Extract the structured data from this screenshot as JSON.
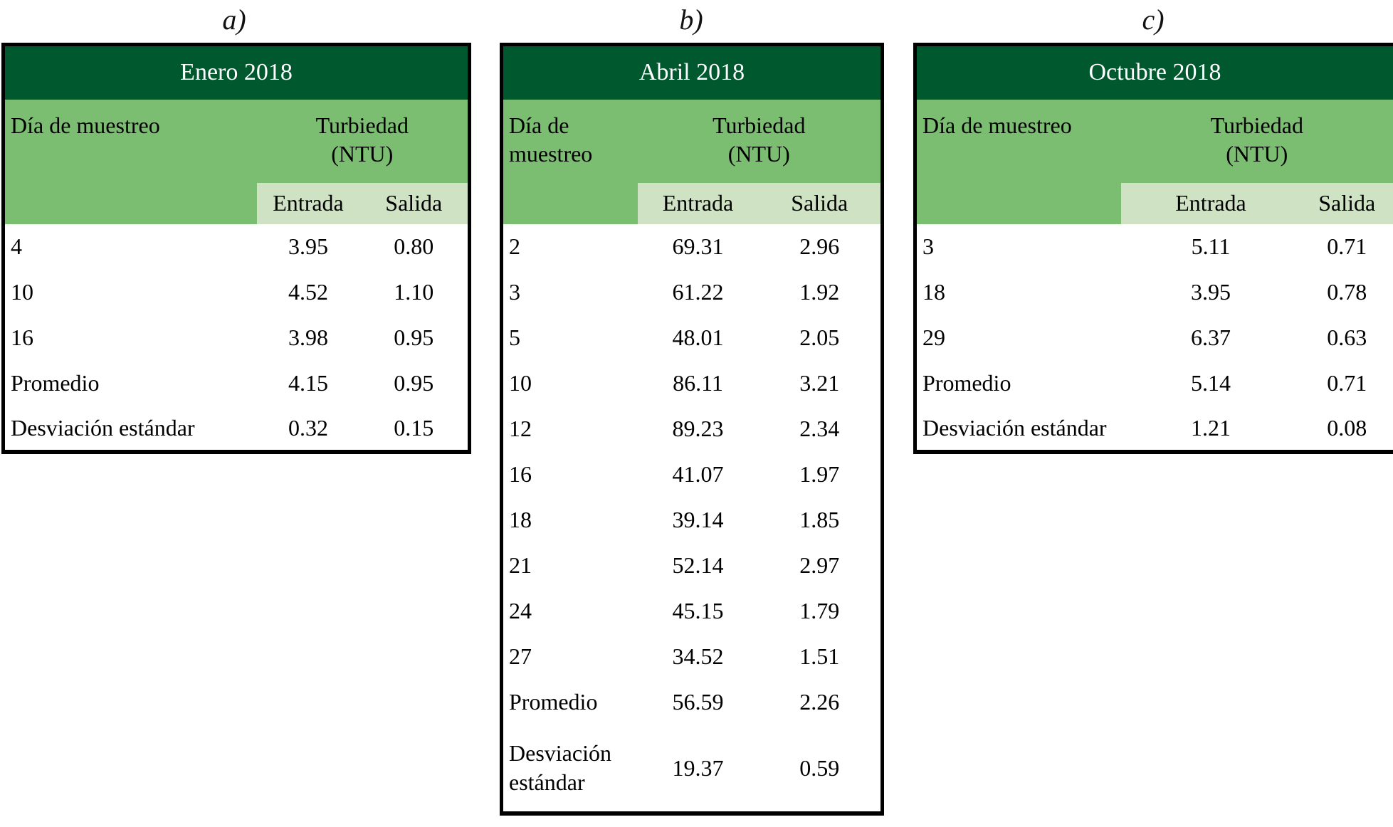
{
  "panels": [
    {
      "label": "a)",
      "title": "Enero 2018",
      "headers": {
        "day": "Día de muestreo",
        "group": "Turbiedad",
        "unit": "(NTU)",
        "inflow": "Entrada",
        "outflow": "Salida"
      },
      "rows": [
        [
          "4",
          "3.95",
          "0.80"
        ],
        [
          "10",
          "4.52",
          "1.10"
        ],
        [
          "16",
          "3.98",
          "0.95"
        ],
        [
          "Promedio",
          "4.15",
          "0.95"
        ],
        [
          "Desviación estándar",
          "0.32",
          "0.15"
        ]
      ]
    },
    {
      "label": "b)",
      "title": "Abril 2018",
      "headers": {
        "day": "Día de muestreo",
        "group": "Turbiedad",
        "unit": "(NTU)",
        "inflow": "Entrada",
        "outflow": "Salida"
      },
      "rows": [
        [
          "2",
          "69.31",
          "2.96"
        ],
        [
          "3",
          "61.22",
          "1.92"
        ],
        [
          "5",
          "48.01",
          "2.05"
        ],
        [
          "10",
          "86.11",
          "3.21"
        ],
        [
          "12",
          "89.23",
          "2.34"
        ],
        [
          "16",
          "41.07",
          "1.97"
        ],
        [
          "18",
          "39.14",
          "1.85"
        ],
        [
          "21",
          "52.14",
          "2.97"
        ],
        [
          "24",
          "45.15",
          "1.79"
        ],
        [
          "27",
          "34.52",
          "1.51"
        ],
        [
          "Promedio",
          "56.59",
          "2.26"
        ],
        [
          "Desviación estándar",
          "19.37",
          "0.59"
        ]
      ]
    },
    {
      "label": "c)",
      "title": "Octubre 2018",
      "headers": {
        "day": "Día de muestreo",
        "group": "Turbiedad",
        "unit": "(NTU)",
        "inflow": "Entrada",
        "outflow": "Salida"
      },
      "rows": [
        [
          "3",
          "5.11",
          "0.71"
        ],
        [
          "18",
          "3.95",
          "0.78"
        ],
        [
          "29",
          "6.37",
          "0.63"
        ],
        [
          "Promedio",
          "5.14",
          "0.71"
        ],
        [
          "Desviación estándar",
          "1.21",
          "0.08"
        ]
      ]
    }
  ],
  "colors": {
    "title_band": "#00582e",
    "header_band": "#7cbe71",
    "sub_band": "#cfe3c4",
    "border": "#000000"
  },
  "chart_data": [
    {
      "type": "table",
      "title": "Enero 2018",
      "columns": [
        "Día de muestreo",
        "Turbiedad (NTU) Entrada",
        "Turbiedad (NTU) Salida"
      ],
      "rows": [
        [
          "4",
          3.95,
          0.8
        ],
        [
          "10",
          4.52,
          1.1
        ],
        [
          "16",
          3.98,
          0.95
        ],
        [
          "Promedio",
          4.15,
          0.95
        ],
        [
          "Desviación estándar",
          0.32,
          0.15
        ]
      ]
    },
    {
      "type": "table",
      "title": "Abril 2018",
      "columns": [
        "Día de muestreo",
        "Turbiedad (NTU) Entrada",
        "Turbiedad (NTU) Salida"
      ],
      "rows": [
        [
          "2",
          69.31,
          2.96
        ],
        [
          "3",
          61.22,
          1.92
        ],
        [
          "5",
          48.01,
          2.05
        ],
        [
          "10",
          86.11,
          3.21
        ],
        [
          "12",
          89.23,
          2.34
        ],
        [
          "16",
          41.07,
          1.97
        ],
        [
          "18",
          39.14,
          1.85
        ],
        [
          "21",
          52.14,
          2.97
        ],
        [
          "24",
          45.15,
          1.79
        ],
        [
          "27",
          34.52,
          1.51
        ],
        [
          "Promedio",
          56.59,
          2.26
        ],
        [
          "Desviación estándar",
          19.37,
          0.59
        ]
      ]
    },
    {
      "type": "table",
      "title": "Octubre 2018",
      "columns": [
        "Día de muestreo",
        "Turbiedad (NTU) Entrada",
        "Turbiedad (NTU) Salida"
      ],
      "rows": [
        [
          "3",
          5.11,
          0.71
        ],
        [
          "18",
          3.95,
          0.78
        ],
        [
          "29",
          6.37,
          0.63
        ],
        [
          "Promedio",
          5.14,
          0.71
        ],
        [
          "Desviación estándar",
          1.21,
          0.08
        ]
      ]
    }
  ]
}
